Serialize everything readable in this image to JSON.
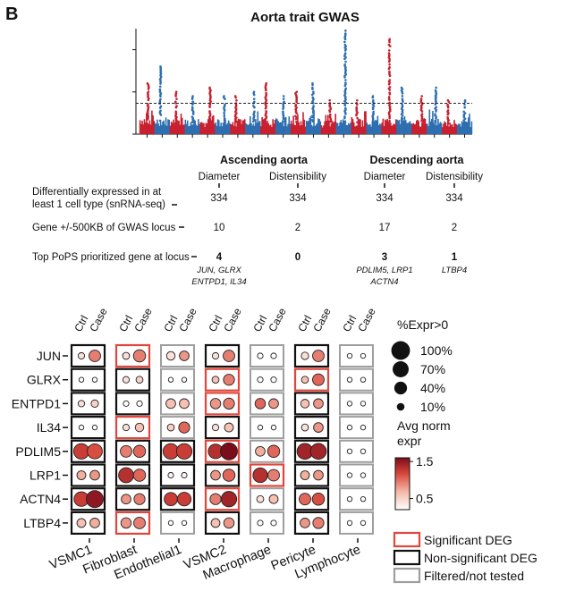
{
  "panel_label": "B",
  "chart_data": [
    {
      "type": "scatter",
      "title": "Aorta trait GWAS",
      "subtype": "manhattan",
      "xlabel": "",
      "ylabel": "",
      "ylim": [
        0,
        25
      ],
      "yticks": [
        0,
        10,
        20
      ],
      "threshold": 7.3,
      "grid": false,
      "colors": [
        "#c8202f",
        "#2e6fb0"
      ],
      "chromosomes": [
        {
          "id": "1",
          "base": 3.5,
          "peak": 12
        },
        {
          "id": "2",
          "base": 3.2,
          "peak": 16
        },
        {
          "id": "3",
          "base": 3.0,
          "peak": 10
        },
        {
          "id": "4",
          "base": 2.8,
          "peak": 9
        },
        {
          "id": "5",
          "base": 2.8,
          "peak": 11
        },
        {
          "id": "6",
          "base": 3.0,
          "peak": 9
        },
        {
          "id": "7",
          "base": 2.9,
          "peak": 9
        },
        {
          "id": "8",
          "base": 3.0,
          "peak": 10
        },
        {
          "id": "9",
          "base": 2.8,
          "peak": 12
        },
        {
          "id": "10",
          "base": 3.0,
          "peak": 9
        },
        {
          "id": "11",
          "base": 2.9,
          "peak": 10
        },
        {
          "id": "12",
          "base": 3.0,
          "peak": 12
        },
        {
          "id": "13",
          "base": 2.6,
          "peak": 8
        },
        {
          "id": "14",
          "base": 2.8,
          "peak": 24.5
        },
        {
          "id": "15",
          "base": 2.8,
          "peak": 8
        },
        {
          "id": "16",
          "base": 2.6,
          "peak": 9
        },
        {
          "id": "17",
          "base": 2.8,
          "peak": 22.5
        },
        {
          "id": "18",
          "base": 2.7,
          "peak": 11
        },
        {
          "id": "19",
          "base": 2.8,
          "peak": 9
        },
        {
          "id": "20",
          "base": 2.8,
          "peak": 11
        },
        {
          "id": "21",
          "base": 2.6,
          "peak": 8
        },
        {
          "id": "22",
          "base": 2.6,
          "peak": 8
        }
      ]
    },
    {
      "type": "table",
      "groups": [
        {
          "label": "Ascending aorta",
          "columns": [
            "Diameter",
            "Distensibility"
          ]
        },
        {
          "label": "Descending aorta",
          "columns": [
            "Diameter",
            "Distensibility"
          ]
        }
      ],
      "rows": [
        {
          "label_lines": [
            "Differentially expressed in at",
            "least 1 cell type (snRNA-seq)"
          ],
          "values": [
            "334",
            "334",
            "334",
            "334"
          ]
        },
        {
          "label_lines": [
            "Gene +/-500KB of GWAS locus"
          ],
          "values": [
            "10",
            "2",
            "17",
            "2"
          ]
        },
        {
          "label_lines": [
            "Top PoPS prioritized gene at locus"
          ],
          "values": [
            "4",
            "0",
            "3",
            "1"
          ],
          "notes": [
            [
              "JUN, GLRX",
              "ENTPD1, IL34"
            ],
            [],
            [
              "PDLIM5, LRP1",
              "ACTN4"
            ],
            [
              "LTBP4"
            ]
          ]
        }
      ]
    },
    {
      "type": "heatmap",
      "subtype": "dotplot",
      "genes": [
        "JUN",
        "GLRX",
        "ENTPD1",
        "IL34",
        "PDLIM5",
        "LRP1",
        "ACTN4",
        "LTBP4"
      ],
      "cell_types": [
        "VSMC1",
        "Fibroblast",
        "Endothelial1",
        "VSMC2",
        "Macrophage",
        "Pericyte",
        "Lymphocyte"
      ],
      "conditions": [
        "Ctrl",
        "Case"
      ],
      "status_key": {
        "S": "Significant DEG",
        "N": "Non-significant DEG",
        "F": "Filtered/not tested"
      },
      "status": [
        [
          "N",
          "S",
          "F",
          "N",
          "F",
          "N",
          "F"
        ],
        [
          "N",
          "N",
          "F",
          "S",
          "F",
          "S",
          "F"
        ],
        [
          "N",
          "N",
          "F",
          "S",
          "F",
          "N",
          "F"
        ],
        [
          "N",
          "S",
          "F",
          "N",
          "F",
          "N",
          "F"
        ],
        [
          "N",
          "N",
          "N",
          "S",
          "F",
          "N",
          "F"
        ],
        [
          "N",
          "N",
          "N",
          "N",
          "S",
          "N",
          "F"
        ],
        [
          "N",
          "N",
          "N",
          "S",
          "F",
          "N",
          "F"
        ],
        [
          "N",
          "S",
          "F",
          "N",
          "F",
          "N",
          "F"
        ]
      ],
      "pct_expr": [
        [
          [
            8,
            40
          ],
          [
            10,
            45
          ],
          [
            18,
            25
          ],
          [
            8,
            40
          ],
          [
            5,
            5
          ],
          [
            12,
            40
          ],
          [
            3,
            3
          ]
        ],
        [
          [
            3,
            3
          ],
          [
            8,
            10
          ],
          [
            3,
            3
          ],
          [
            10,
            35
          ],
          [
            5,
            5
          ],
          [
            10,
            40
          ],
          [
            3,
            3
          ]
        ],
        [
          [
            8,
            12
          ],
          [
            5,
            5
          ],
          [
            25,
            25
          ],
          [
            30,
            35
          ],
          [
            30,
            25
          ],
          [
            18,
            25
          ],
          [
            3,
            3
          ]
        ],
        [
          [
            3,
            3
          ],
          [
            8,
            18
          ],
          [
            10,
            35
          ],
          [
            8,
            20
          ],
          [
            3,
            3
          ],
          [
            10,
            25
          ],
          [
            3,
            3
          ]
        ],
        [
          [
            80,
            75
          ],
          [
            40,
            45
          ],
          [
            80,
            80
          ],
          [
            70,
            100
          ],
          [
            25,
            45
          ],
          [
            85,
            85
          ],
          [
            3,
            3
          ]
        ],
        [
          [
            20,
            25
          ],
          [
            75,
            45
          ],
          [
            5,
            5
          ],
          [
            25,
            45
          ],
          [
            70,
            40
          ],
          [
            20,
            25
          ],
          [
            3,
            3
          ]
        ],
        [
          [
            70,
            100
          ],
          [
            25,
            35
          ],
          [
            55,
            60
          ],
          [
            35,
            80
          ],
          [
            10,
            20
          ],
          [
            40,
            45
          ],
          [
            3,
            3
          ]
        ],
        [
          [
            20,
            25
          ],
          [
            30,
            40
          ],
          [
            3,
            3
          ],
          [
            20,
            30
          ],
          [
            5,
            5
          ],
          [
            25,
            35
          ],
          [
            3,
            3
          ]
        ]
      ],
      "avg_expr": [
        [
          [
            0.4,
            0.9
          ],
          [
            0.4,
            0.9
          ],
          [
            0.4,
            0.8
          ],
          [
            0.4,
            0.9
          ],
          [
            0.2,
            0.2
          ],
          [
            0.4,
            0.9
          ],
          [
            0.2,
            0.2
          ]
        ],
        [
          [
            0.2,
            0.2
          ],
          [
            0.4,
            0.5
          ],
          [
            0.2,
            0.2
          ],
          [
            0.6,
            0.9
          ],
          [
            0.2,
            0.2
          ],
          [
            0.6,
            1.0
          ],
          [
            0.2,
            0.2
          ]
        ],
        [
          [
            0.4,
            0.5
          ],
          [
            0.2,
            0.2
          ],
          [
            0.6,
            0.6
          ],
          [
            0.8,
            0.9
          ],
          [
            1.0,
            0.8
          ],
          [
            0.6,
            0.8
          ],
          [
            0.2,
            0.2
          ]
        ],
        [
          [
            0.2,
            0.2
          ],
          [
            0.4,
            0.6
          ],
          [
            0.5,
            1.0
          ],
          [
            0.4,
            0.6
          ],
          [
            0.2,
            0.2
          ],
          [
            0.4,
            0.8
          ],
          [
            0.2,
            0.2
          ]
        ],
        [
          [
            1.2,
            1.1
          ],
          [
            0.9,
            1.0
          ],
          [
            1.2,
            1.2
          ],
          [
            1.3,
            1.6
          ],
          [
            0.7,
            1.0
          ],
          [
            1.4,
            1.4
          ],
          [
            0.2,
            0.2
          ]
        ],
        [
          [
            0.7,
            0.8
          ],
          [
            1.3,
            1.0
          ],
          [
            0.3,
            0.3
          ],
          [
            0.8,
            1.0
          ],
          [
            1.3,
            0.9
          ],
          [
            0.7,
            0.8
          ],
          [
            0.2,
            0.2
          ]
        ],
        [
          [
            1.2,
            1.5
          ],
          [
            0.8,
            0.9
          ],
          [
            1.2,
            1.2
          ],
          [
            0.9,
            1.4
          ],
          [
            0.4,
            0.6
          ],
          [
            1.0,
            1.1
          ],
          [
            0.2,
            0.2
          ]
        ],
        [
          [
            0.6,
            0.7
          ],
          [
            0.8,
            0.9
          ],
          [
            0.2,
            0.2
          ],
          [
            0.6,
            0.8
          ],
          [
            0.2,
            0.2
          ],
          [
            0.8,
            0.9
          ],
          [
            0.2,
            0.2
          ]
        ]
      ],
      "size_legend": {
        "title": "%Expr>0",
        "values": [
          100,
          70,
          40,
          10
        ],
        "labels": [
          "100%",
          "70%",
          "40%",
          "10%"
        ]
      },
      "color_legend": {
        "title_lines": [
          "Avg norm",
          "expr"
        ],
        "range": [
          0.2,
          1.6
        ],
        "ticks": [
          1.5,
          0.5
        ],
        "tick_labels": [
          "1.5",
          "0.5"
        ],
        "colors": [
          "#ffffff",
          "#f4b7a6",
          "#d6453a",
          "#7a0c1c"
        ]
      },
      "box_legend": [
        {
          "key": "S",
          "label": "Significant DEG",
          "color": "#e0473c"
        },
        {
          "key": "N",
          "label": "Non-significant DEG",
          "color": "#111111"
        },
        {
          "key": "F",
          "label": "Filtered/not tested",
          "color": "#9e9e9e"
        }
      ]
    }
  ]
}
